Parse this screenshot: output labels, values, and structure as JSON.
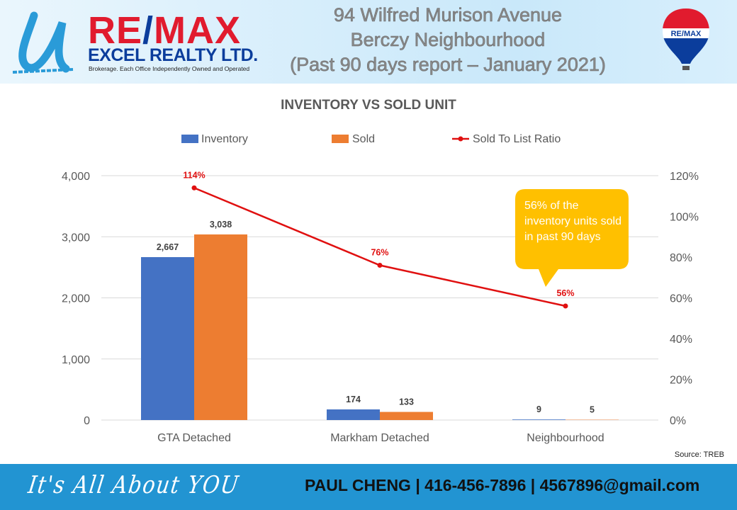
{
  "header": {
    "logo_brand": "RE/MAX",
    "logo_company": "EXCEL REALTY LTD.",
    "logo_tagline": "Brokerage. Each Office Independently Owned and Operated",
    "title_lines": [
      "94 Wilfred Murison Avenue",
      "Berczy Neighbourhood",
      "(Past 90 days report – January 2021)"
    ],
    "balloon_text": "RE/MAX"
  },
  "chart_data": {
    "type": "bar",
    "title": "INVENTORY VS SOLD UNIT",
    "categories": [
      "GTA Detached",
      "Markham Detached",
      "Neighbourhood"
    ],
    "series": [
      {
        "name": "Inventory",
        "type": "bar",
        "color": "#4472c4",
        "values": [
          2667,
          174,
          9
        ],
        "labels": [
          "2,667",
          "174",
          "9"
        ]
      },
      {
        "name": "Sold",
        "type": "bar",
        "color": "#ed7d31",
        "values": [
          3038,
          133,
          5
        ],
        "labels": [
          "3,038",
          "133",
          "5"
        ]
      },
      {
        "name": "Sold To List Ratio",
        "type": "line",
        "axis": "right",
        "color": "#e01010",
        "values": [
          114,
          76,
          56
        ],
        "labels": [
          "114%",
          "76%",
          "56%"
        ]
      }
    ],
    "ylim": [
      0,
      4000
    ],
    "yticks": [
      "0",
      "1,000",
      "2,000",
      "3,000",
      "4,000"
    ],
    "y2lim": [
      0,
      120
    ],
    "y2ticks": [
      "0%",
      "20%",
      "40%",
      "60%",
      "80%",
      "100%",
      "120%"
    ],
    "grid": true,
    "legend": "top",
    "annotation": "56% of the inventory units sold in past 90 days"
  },
  "source": "Source: TREB",
  "footer": {
    "slogan": "It's All About YOU",
    "contact": "PAUL CHENG | 416-456-7896 | 4567896@gmail.com"
  }
}
